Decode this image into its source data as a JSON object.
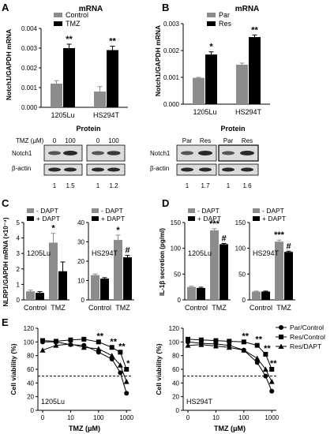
{
  "colors": {
    "gray": "#8c8c8c",
    "black": "#000000",
    "band_bg": "#dcdcdc",
    "band": "#2a2a2a"
  },
  "panels": {
    "A": "A",
    "B": "B",
    "C": "C",
    "D": "D",
    "E": "E"
  },
  "blot_A": {
    "title": "Protein",
    "tmz_label": "TMZ (μM)",
    "lanes": [
      "0",
      "100",
      "0",
      "100"
    ],
    "rows": [
      "Notch1",
      "β-actin"
    ],
    "quant": [
      "1",
      "1.5",
      "1",
      "1.2"
    ]
  },
  "blot_B": {
    "title": "Protein",
    "lanes": [
      "Par",
      "Res",
      "Par",
      "Res"
    ],
    "rows": [
      "Notch1",
      "β-actin"
    ],
    "quant": [
      "1",
      "1.7",
      "1",
      "1.6"
    ]
  },
  "chart_data": [
    {
      "id": "A",
      "type": "bar",
      "title": "mRNA",
      "ylabel": "Notch1/GAPDH mRNA",
      "ylim": [
        0,
        0.004
      ],
      "yticks": [
        "0.000",
        "0.001",
        "0.002",
        "0.003",
        "0.004"
      ],
      "categories": [
        "1205Lu",
        "HS294T"
      ],
      "series": [
        {
          "name": "Control",
          "color": "gray",
          "values": [
            0.0012,
            0.0008
          ],
          "errors": [
            0.00015,
            0.00025
          ]
        },
        {
          "name": "TMZ",
          "color": "black",
          "values": [
            0.003,
            0.0029
          ],
          "errors": [
            0.0002,
            0.0002
          ]
        }
      ],
      "annotations": [
        {
          "text": "**",
          "category": 0,
          "series": 1
        },
        {
          "text": "**",
          "category": 1,
          "series": 1
        }
      ]
    },
    {
      "id": "B",
      "type": "bar",
      "title": "mRNA",
      "ylabel": "Notch1/GAPDH mRNA",
      "ylim": [
        0,
        0.003
      ],
      "yticks": [
        "0.000",
        "0.001",
        "0.002",
        "0.003"
      ],
      "categories": [
        "1205Lu",
        "HS294T"
      ],
      "series": [
        {
          "name": "Par",
          "color": "gray",
          "values": [
            0.00098,
            0.00147
          ],
          "errors": [
            2e-05,
            6e-05
          ]
        },
        {
          "name": "Res",
          "color": "black",
          "values": [
            0.00185,
            0.0025
          ],
          "errors": [
            0.0001,
            8e-05
          ]
        }
      ],
      "annotations": [
        {
          "text": "*",
          "category": 0,
          "series": 1
        },
        {
          "text": "**",
          "category": 1,
          "series": 1
        }
      ]
    },
    {
      "id": "C",
      "type": "bar",
      "ylabel": "NLRP1/GAPDH mRNA (×10⁻⁴)",
      "legend": [
        "- DAPT",
        "+ DAPT"
      ],
      "panels": [
        {
          "label": "1205Lu",
          "ylim": [
            0,
            5
          ],
          "yticks": [
            "0",
            "1",
            "2",
            "3",
            "4",
            "5"
          ],
          "categories": [
            "Control",
            "TMZ"
          ],
          "series": [
            {
              "name": "- DAPT",
              "color": "gray",
              "values": [
                0.55,
                3.7
              ],
              "errors": [
                0.08,
                0.6
              ]
            },
            {
              "name": "+ DAPT",
              "color": "black",
              "values": [
                0.45,
                1.85
              ],
              "errors": [
                0.08,
                0.6
              ]
            }
          ],
          "annotations": [
            {
              "text": "*",
              "category": 1,
              "series": 0
            }
          ]
        },
        {
          "label": "HS294T",
          "ylim": [
            0,
            40
          ],
          "yticks": [
            "0",
            "10",
            "20",
            "30",
            "40"
          ],
          "categories": [
            "Control",
            "TMZ"
          ],
          "series": [
            {
              "name": "- DAPT",
              "color": "gray",
              "values": [
                12.8,
                31
              ],
              "errors": [
                0.6,
                2.5
              ]
            },
            {
              "name": "+ DAPT",
              "color": "black",
              "values": [
                11,
                22
              ],
              "errors": [
                0.5,
                1
              ]
            }
          ],
          "annotations": [
            {
              "text": "*",
              "category": 1,
              "series": 0
            },
            {
              "text": "#",
              "category": 1,
              "series": 1
            }
          ]
        }
      ]
    },
    {
      "id": "D",
      "type": "bar",
      "ylabel": "IL-1β secretion (pg/ml)",
      "legend": [
        "- DAPT",
        "+ DAPT"
      ],
      "panels": [
        {
          "label": "1205Lu",
          "ylim": [
            0,
            150
          ],
          "yticks": [
            "0",
            "50",
            "100",
            "150"
          ],
          "categories": [
            "Control",
            "TMZ"
          ],
          "series": [
            {
              "name": "- DAPT",
              "color": "gray",
              "values": [
                25,
                135
              ],
              "errors": [
                1.5,
                3
              ]
            },
            {
              "name": "+ DAPT",
              "color": "black",
              "values": [
                23,
                108
              ],
              "errors": [
                1.5,
                1.5
              ]
            }
          ],
          "annotations": [
            {
              "text": "***",
              "category": 1,
              "series": 0
            },
            {
              "text": "#",
              "category": 1,
              "series": 1
            }
          ]
        },
        {
          "label": "HS294T",
          "ylim": [
            0,
            150
          ],
          "yticks": [
            "0",
            "50",
            "100",
            "150"
          ],
          "categories": [
            "Control",
            "TMZ"
          ],
          "series": [
            {
              "name": "- DAPT",
              "color": "gray",
              "values": [
                16,
                113
              ],
              "errors": [
                1,
                3
              ]
            },
            {
              "name": "+ DAPT",
              "color": "black",
              "values": [
                16,
                93
              ],
              "errors": [
                1,
                1.5
              ]
            }
          ],
          "annotations": [
            {
              "text": "***",
              "category": 1,
              "series": 0
            },
            {
              "text": "#",
              "category": 1,
              "series": 1
            }
          ]
        }
      ]
    },
    {
      "id": "E",
      "type": "scatter",
      "ylabel": "Cell viability (%)",
      "xlabel": "TMZ (μM)",
      "yticks": [
        "0",
        "20",
        "40",
        "60",
        "80",
        "100",
        "120"
      ],
      "ylim": [
        0,
        120
      ],
      "xticks": [
        "0",
        "10",
        "100",
        "1000"
      ],
      "xlog": true,
      "reference_line_y": 50,
      "legend": [
        "Par/Control",
        "Res/Control",
        "Res/DAPT"
      ],
      "panels": [
        {
          "label": "1205Lu",
          "x": [
            1,
            3,
            10,
            30,
            100,
            300,
            600,
            1000
          ],
          "series": [
            {
              "name": "Par/Control",
              "marker": "circle",
              "values": [
                100,
                100,
                96,
                95,
                85,
                75,
                55,
                25
              ]
            },
            {
              "name": "Res/Control",
              "marker": "square",
              "values": [
                102,
                101,
                103,
                104,
                100,
                92,
                85,
                60
              ]
            },
            {
              "name": "Res/DAPT",
              "marker": "triangle",
              "values": [
                88,
                95,
                97,
                92,
                90,
                80,
                66,
                42
              ]
            }
          ],
          "annotations": [
            "**",
            "**",
            "**",
            "*"
          ]
        },
        {
          "label": "HS294T",
          "x": [
            1,
            3,
            10,
            30,
            100,
            300,
            600,
            1000
          ],
          "series": [
            {
              "name": "Par/Control",
              "marker": "circle",
              "values": [
                100,
                98,
                97,
                95,
                88,
                70,
                50,
                28
              ]
            },
            {
              "name": "Res/Control",
              "marker": "square",
              "values": [
                104,
                103,
                102,
                101,
                100,
                95,
                82,
                60
              ]
            },
            {
              "name": "Res/DAPT",
              "marker": "triangle",
              "values": [
                95,
                96,
                94,
                92,
                88,
                76,
                60,
                42
              ]
            }
          ],
          "annotations": [
            "**",
            "**",
            "**",
            "**"
          ]
        }
      ]
    }
  ]
}
